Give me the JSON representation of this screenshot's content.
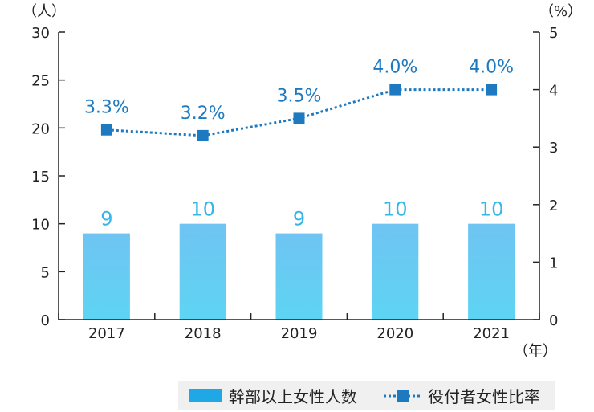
{
  "chart_data": {
    "type": "bar",
    "categories": [
      "2017",
      "2018",
      "2019",
      "2020",
      "2021"
    ],
    "series": [
      {
        "name": "幹部以上女性人数",
        "type": "bar",
        "axis": "left",
        "values": [
          9,
          10,
          9,
          10,
          10
        ],
        "labels": [
          "9",
          "10",
          "9",
          "10",
          "10"
        ],
        "color": "#5ec7f0"
      },
      {
        "name": "役付者女性比率",
        "type": "line",
        "axis": "right",
        "values": [
          3.3,
          3.2,
          3.5,
          4.0,
          4.0
        ],
        "labels": [
          "3.3%",
          "3.2%",
          "3.5%",
          "4.0%",
          "4.0%"
        ],
        "color": "#1e7ac0",
        "line_style": "dotted",
        "marker": "square"
      }
    ],
    "y_left": {
      "unit": "（人）",
      "ylim": [
        0,
        30
      ],
      "ticks": [
        "0",
        "5",
        "10",
        "15",
        "20",
        "25",
        "30"
      ]
    },
    "y_right": {
      "unit": "（%）",
      "ylim": [
        0,
        5
      ],
      "ticks": [
        "0",
        "1",
        "2",
        "3",
        "4",
        "5"
      ]
    },
    "x_unit": "（年）",
    "grid": false,
    "legend_position": "bottom-right"
  }
}
